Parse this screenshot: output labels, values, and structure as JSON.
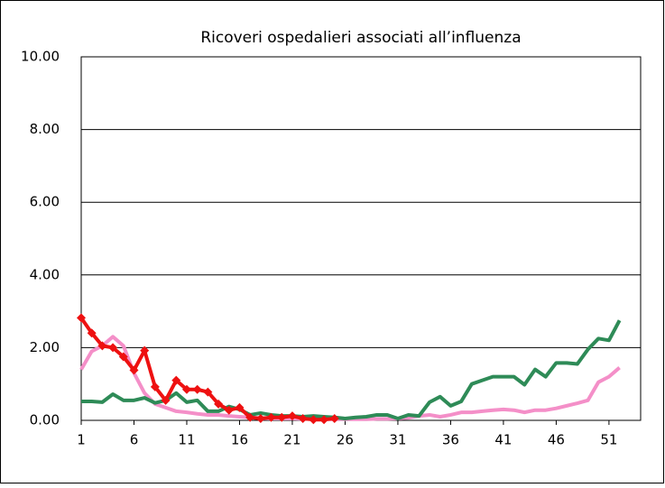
{
  "chart_data": {
    "type": "line",
    "title": "Ricoveri ospedalieri associati all’influenza",
    "x": [
      1,
      2,
      3,
      4,
      5,
      6,
      7,
      8,
      9,
      10,
      11,
      12,
      13,
      14,
      15,
      16,
      17,
      18,
      19,
      20,
      21,
      22,
      23,
      24,
      25,
      26,
      27,
      28,
      29,
      30,
      31,
      32,
      33,
      34,
      35,
      36,
      37,
      38,
      39,
      40,
      41,
      42,
      43,
      44,
      45,
      46,
      47,
      48,
      49,
      50,
      51,
      52
    ],
    "xlim": [
      1,
      54
    ],
    "xticks": [
      1,
      6,
      11,
      16,
      21,
      26,
      31,
      36,
      41,
      46,
      51
    ],
    "ylim": [
      0,
      10
    ],
    "yticks": [
      {
        "value": 0,
        "label": "0.00"
      },
      {
        "value": 2,
        "label": "2.00"
      },
      {
        "value": 4,
        "label": "4.00"
      },
      {
        "value": 6,
        "label": "6.00"
      },
      {
        "value": 8,
        "label": "8.00"
      },
      {
        "value": 10,
        "label": "10.00"
      }
    ],
    "grid": true,
    "series": [
      {
        "color": "#f48fc8",
        "markers": false,
        "values": [
          1.4,
          1.9,
          2.05,
          2.3,
          2.05,
          1.3,
          0.75,
          0.45,
          0.35,
          0.25,
          0.22,
          0.18,
          0.15,
          0.15,
          0.12,
          0.1,
          0.08,
          0.06,
          0.05,
          0.05,
          0.05,
          0.04,
          0.04,
          0.03,
          0.03,
          0.03,
          0.03,
          0.03,
          0.04,
          0.04,
          0.05,
          0.07,
          0.12,
          0.15,
          0.1,
          0.15,
          0.22,
          0.22,
          0.25,
          0.28,
          0.3,
          0.28,
          0.22,
          0.28,
          0.28,
          0.33,
          0.4,
          0.47,
          0.55,
          1.05,
          1.2,
          1.45
        ]
      },
      {
        "color": "#2e8b57",
        "markers": false,
        "values": [
          0.52,
          0.52,
          0.5,
          0.72,
          0.55,
          0.55,
          0.62,
          0.48,
          0.55,
          0.75,
          0.5,
          0.55,
          0.25,
          0.25,
          0.38,
          0.3,
          0.15,
          0.2,
          0.15,
          0.12,
          0.12,
          0.1,
          0.12,
          0.1,
          0.08,
          0.05,
          0.08,
          0.1,
          0.15,
          0.15,
          0.05,
          0.15,
          0.12,
          0.5,
          0.65,
          0.4,
          0.52,
          1.0,
          1.1,
          1.2,
          1.2,
          1.2,
          0.98,
          1.4,
          1.2,
          1.58,
          1.58,
          1.55,
          1.95,
          2.25,
          2.2,
          2.75
        ]
      },
      {
        "color": "#ee1111",
        "markers": true,
        "values": [
          2.82,
          2.4,
          2.05,
          2.0,
          1.75,
          1.38,
          1.92,
          0.92,
          0.55,
          1.1,
          0.85,
          0.85,
          0.78,
          0.45,
          0.28,
          0.35,
          0.08,
          0.05,
          0.08,
          0.08,
          0.12,
          0.05,
          0.02,
          0.02,
          0.05,
          null,
          null,
          null,
          null,
          null,
          null,
          null,
          null,
          null,
          null,
          null,
          null,
          null,
          null,
          null,
          null,
          null,
          null,
          null,
          null,
          null,
          null,
          null,
          null,
          null,
          null,
          null
        ]
      }
    ]
  }
}
